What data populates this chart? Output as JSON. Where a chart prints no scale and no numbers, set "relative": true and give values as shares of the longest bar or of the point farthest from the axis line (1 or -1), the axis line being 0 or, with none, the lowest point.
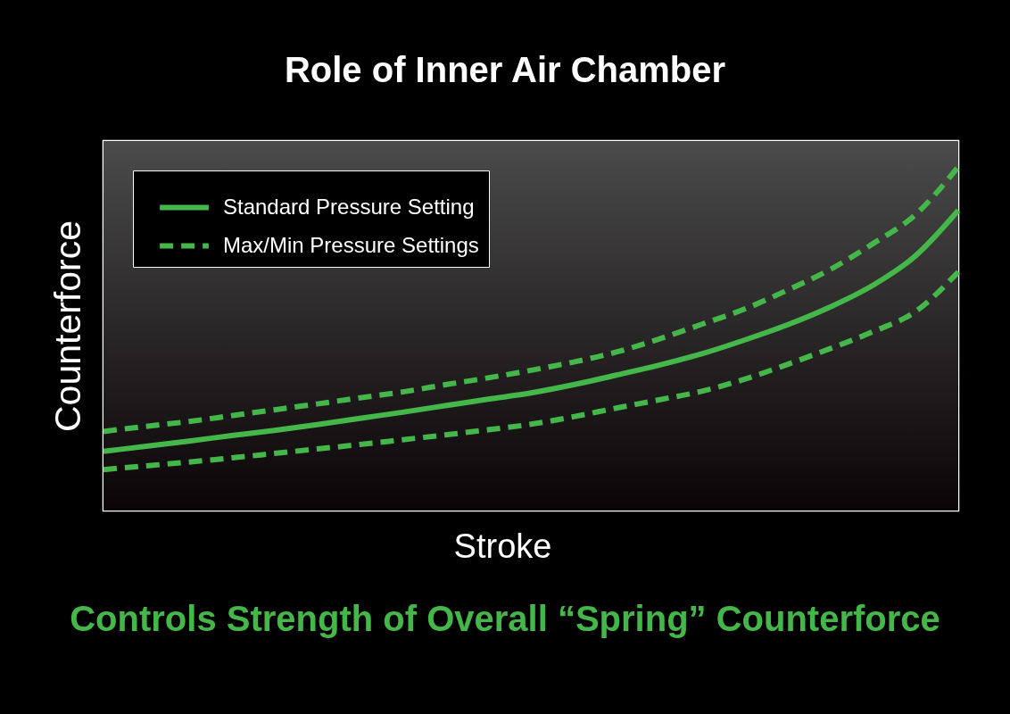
{
  "chart_data": {
    "type": "line",
    "title": "Role of Inner Air Chamber",
    "xlabel": "Stroke",
    "ylabel": "Counterforce",
    "relative": true,
    "legend": "top left",
    "grid": false,
    "marker": "none",
    "categories": [
      null,
      null,
      null,
      null,
      null,
      null,
      null,
      null,
      null,
      null,
      null,
      null,
      null,
      null,
      null,
      null,
      null,
      null,
      null,
      null,
      null
    ],
    "series": [
      {
        "name": "Standard Pressure Setting",
        "color": "#45b649",
        "line_style": "solid",
        "values": [
          0.172,
          0.187,
          0.202,
          0.218,
          0.233,
          0.25,
          0.268,
          0.286,
          0.305,
          0.324,
          0.342,
          0.366,
          0.394,
          0.423,
          0.456,
          0.496,
          0.54,
          0.592,
          0.655,
          0.741,
          0.873
        ]
      },
      {
        "name": "Max/Min Pressure Settings",
        "color": "#45b649",
        "line_style": "dashed",
        "values": [
          0.23,
          0.245,
          0.259,
          0.276,
          0.293,
          0.31,
          0.328,
          0.345,
          0.366,
          0.386,
          0.408,
          0.432,
          0.461,
          0.499,
          0.542,
          0.586,
          0.641,
          0.701,
          0.776,
          0.861,
          1.0
        ]
      },
      {
        "color": "#45b649",
        "line_style": "dashed",
        "values": [
          0.119,
          0.13,
          0.141,
          0.153,
          0.166,
          0.179,
          0.192,
          0.206,
          0.22,
          0.235,
          0.251,
          0.273,
          0.298,
          0.322,
          0.347,
          0.382,
          0.425,
          0.471,
          0.52,
          0.579,
          0.694
        ]
      }
    ],
    "annotations": [
      "Controls Strength of Overall “Spring” Counterforce"
    ]
  }
}
